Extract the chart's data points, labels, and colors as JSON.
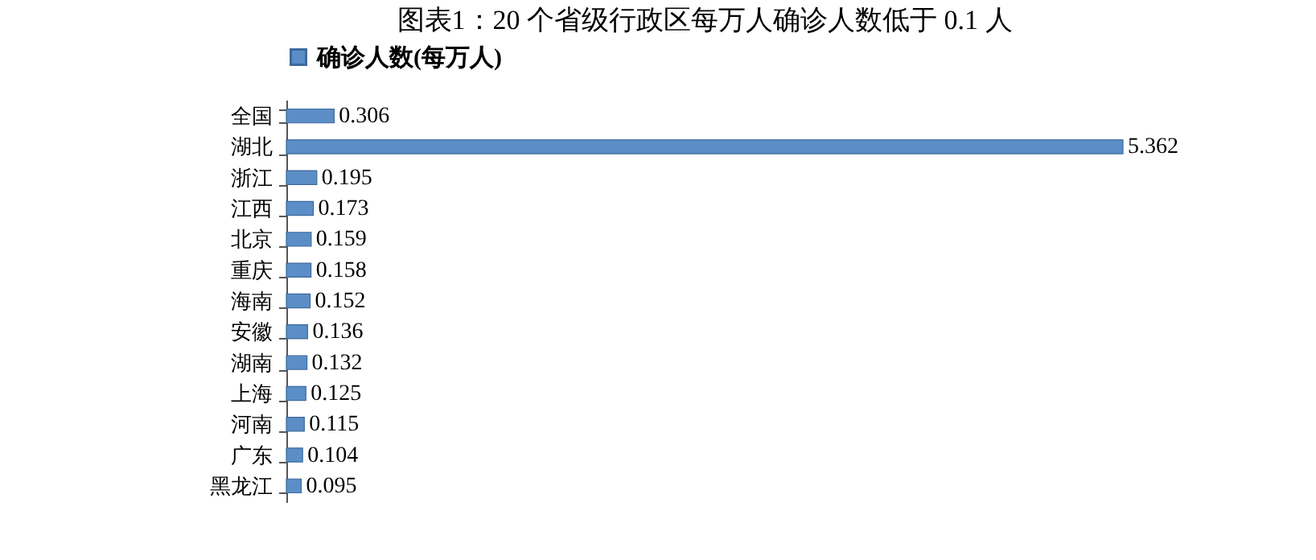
{
  "chart_data": {
    "type": "bar",
    "orientation": "horizontal",
    "title": "图表1：20 个省级行政区每万人确诊人数低于 0.1 人",
    "categories": [
      "全国",
      "湖北",
      "浙江",
      "江西",
      "北京",
      "重庆",
      "海南",
      "安徽",
      "湖南",
      "上海",
      "河南",
      "广东",
      "黑龙江"
    ],
    "series": [
      {
        "name": "确诊人数(每万人)",
        "color": "#5b8ec6",
        "values": [
          0.306,
          5.362,
          0.195,
          0.173,
          0.159,
          0.158,
          0.152,
          0.136,
          0.132,
          0.125,
          0.115,
          0.104,
          0.095
        ]
      }
    ],
    "data_labels": true,
    "legend": "top",
    "tick_labels": "y",
    "grid": false
  }
}
